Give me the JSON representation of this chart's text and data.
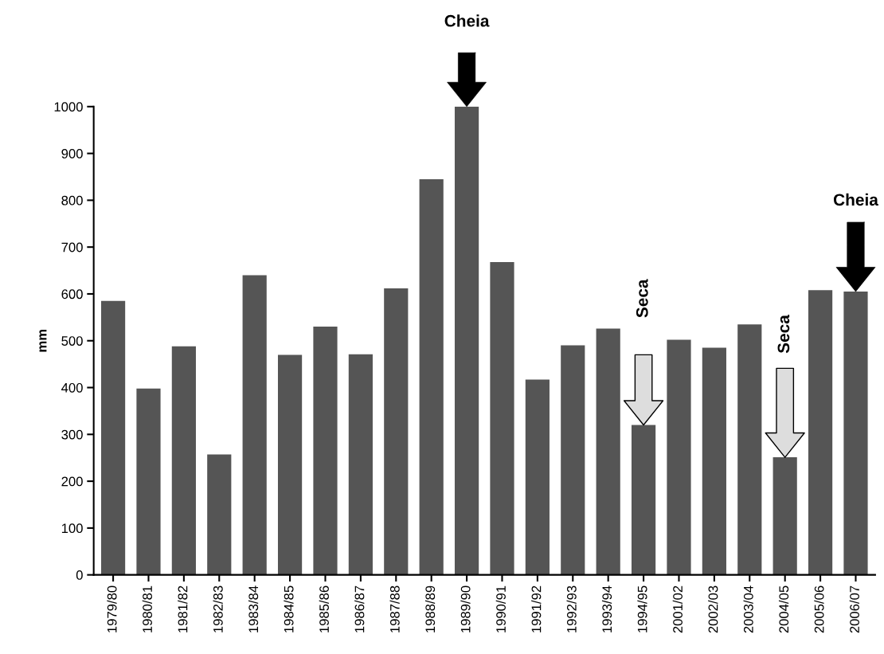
{
  "chart_data": {
    "type": "bar",
    "ylabel": "mm",
    "categories": [
      "1979/80",
      "1980/81",
      "1981/82",
      "1982/83",
      "1983/84",
      "1984/85",
      "1985/86",
      "1986/87",
      "1987/88",
      "1988/89",
      "1989/90",
      "1990/91",
      "1991/92",
      "1992/93",
      "1993/94",
      "1994/95",
      "2001/02",
      "2002/03",
      "2003/04",
      "2004/05",
      "2005/06",
      "2006/07"
    ],
    "values": [
      585,
      398,
      488,
      257,
      640,
      470,
      530,
      471,
      612,
      845,
      1000,
      668,
      417,
      490,
      526,
      320,
      502,
      485,
      535,
      251,
      608,
      605
    ],
    "color": "#555555",
    "ylim": [
      0,
      1000
    ],
    "yticks": [
      0,
      100,
      200,
      300,
      400,
      500,
      600,
      700,
      800,
      900,
      1000
    ],
    "grid": false,
    "annotations": [
      "Cheia",
      "Seca",
      "Seca",
      "Cheia"
    ]
  }
}
